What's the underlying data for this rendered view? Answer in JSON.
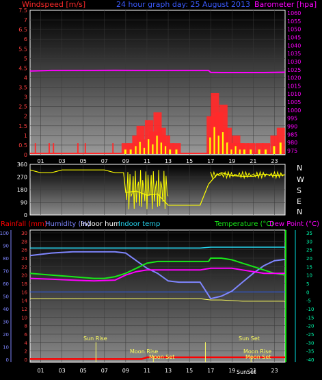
{
  "colors": {
    "wind": "#ff2a2a",
    "gust_light": "#ffff00",
    "gust_mid": "#3b6cff",
    "barometer": "#ff00ff",
    "direction": "#ffff00",
    "rain": "#ff0000",
    "humidity": "#7f86ff",
    "indoor_hum": "#ffffff",
    "indoor_temp": "#25d6f0",
    "temperature": "#18e818",
    "dew_point": "#ff00ff",
    "left_axis_top": "#ff4040",
    "right_axis_top": "#ff00ff",
    "left_axis_bottom_humidity": "#7f86ff",
    "left_axis_bottom_rain": "#ff4040",
    "right_axis_bottom": "#33ff66",
    "temp_axis_right": "#00ffb0"
  },
  "header": {
    "left_title": "Windspeed [m/s]",
    "center_title": "24 hour graph day: 25 August 2013",
    "right_title": "Barometer [hpa]"
  },
  "bottom_header": {
    "rainfall": "Rainfall (mm)",
    "humidity": "Humidity (%)",
    "indoor_hum": "Indoor hum",
    "indoor_temp": "Indoor temp",
    "temperature": "Temperature (°C)",
    "dew_point": "Dew Point (°C)"
  },
  "compass": {
    "labels": [
      "N",
      "W",
      "S",
      "E",
      "N"
    ]
  },
  "x_ticks": [
    "01",
    "03",
    "05",
    "07",
    "09",
    "11",
    "13",
    "15",
    "17",
    "19",
    "21",
    "23"
  ],
  "annotations": {
    "sun_rise": "Sun Rise",
    "sun_set": "Sun Set",
    "moon_rise": "Moon Rise",
    "moon_set": "Moon Set",
    "sun_set_lower": "SunSet"
  },
  "chart_data": [
    {
      "type": "bar",
      "name": "wind",
      "title": "Windspeed [m/s]",
      "y_left": {
        "label": "Windspeed [m/s]",
        "ticks": [
          "0",
          "0.5",
          "1",
          "1.5",
          "2",
          "2.5",
          "3",
          "3.5",
          "4",
          "4.5",
          "5",
          "5.5",
          "6",
          "6.5",
          "7",
          "7.5"
        ],
        "range": [
          0,
          7.5
        ]
      },
      "y_right": {
        "label": "Barometer [hpa]",
        "ticks": [
          "975",
          "980",
          "985",
          "990",
          "995",
          "1000",
          "1005",
          "1010",
          "1015",
          "1020",
          "1025",
          "1030",
          "1035",
          "1040",
          "1045",
          "1050",
          "1055",
          "1060"
        ],
        "range": [
          975,
          1060
        ]
      },
      "x_range_hours": [
        0,
        24
      ],
      "barometer": {
        "x": [
          0,
          2,
          4,
          6,
          8,
          10,
          12,
          14,
          16,
          16.8,
          17,
          18,
          20,
          22,
          23,
          24
        ],
        "y": [
          1024.2,
          1024.5,
          1024.5,
          1024.5,
          1024.6,
          1024.5,
          1024.5,
          1024.5,
          1024.5,
          1024.5,
          1023.3,
          1023.2,
          1023.2,
          1023.2,
          1023.3,
          1023.4
        ]
      },
      "wind_bursts": [
        {
          "x": 0.5,
          "y": 0.6
        },
        {
          "x": 1.8,
          "y": 0.6
        },
        {
          "x": 2.2,
          "y": 0.6
        },
        {
          "x": 4.5,
          "y": 0.6
        },
        {
          "x": 5.2,
          "y": 0.6
        },
        {
          "x": 7.8,
          "y": 0.6
        },
        {
          "x": 9.0,
          "y": 0.6
        },
        {
          "x": 9.5,
          "y": 0.6
        },
        {
          "x": 10.0,
          "y": 1.0
        },
        {
          "x": 10.4,
          "y": 1.5
        },
        {
          "x": 10.8,
          "y": 0.8
        },
        {
          "x": 11.2,
          "y": 1.8
        },
        {
          "x": 11.6,
          "y": 1.2
        },
        {
          "x": 12.0,
          "y": 2.2
        },
        {
          "x": 12.4,
          "y": 1.4
        },
        {
          "x": 12.8,
          "y": 1.0
        },
        {
          "x": 13.2,
          "y": 0.6
        },
        {
          "x": 13.8,
          "y": 0.6
        },
        {
          "x": 17.0,
          "y": 2.0
        },
        {
          "x": 17.4,
          "y": 3.2
        },
        {
          "x": 17.8,
          "y": 2.2
        },
        {
          "x": 18.2,
          "y": 2.6
        },
        {
          "x": 18.6,
          "y": 1.4
        },
        {
          "x": 19.0,
          "y": 0.6
        },
        {
          "x": 19.4,
          "y": 1.0
        },
        {
          "x": 19.8,
          "y": 0.6
        },
        {
          "x": 20.2,
          "y": 0.6
        },
        {
          "x": 20.8,
          "y": 0.6
        },
        {
          "x": 21.6,
          "y": 0.6
        },
        {
          "x": 22.2,
          "y": 0.6
        },
        {
          "x": 23.0,
          "y": 1.0
        },
        {
          "x": 23.6,
          "y": 1.4
        }
      ]
    },
    {
      "type": "line",
      "name": "wind_direction",
      "y_ticks": [
        "0",
        "90",
        "180",
        "270",
        "360"
      ],
      "y_range": [
        0,
        360
      ],
      "x_range_hours": [
        0,
        24
      ],
      "x": [
        0,
        1,
        2,
        3,
        4,
        5,
        6,
        7,
        8,
        8.8,
        9,
        10,
        11,
        12,
        13,
        14,
        15,
        16,
        16.8,
        17.5,
        18,
        19,
        20,
        21,
        22,
        23,
        24
      ],
      "y": [
        320,
        300,
        300,
        320,
        320,
        320,
        320,
        320,
        300,
        300,
        160,
        170,
        140,
        150,
        70,
        70,
        70,
        70,
        220,
        280,
        300,
        280,
        275,
        275,
        290,
        280,
        285
      ]
    },
    {
      "type": "line",
      "name": "temperature_humidity",
      "x_range_hours": [
        0,
        24
      ],
      "y_left_humidity": {
        "label": "Humidity (%)",
        "ticks": [
          "0",
          "10",
          "20",
          "30",
          "40",
          "50",
          "60",
          "70",
          "80",
          "90",
          "100"
        ],
        "range": [
          0,
          100
        ]
      },
      "y_left_rain": {
        "label": "Rainfall (mm)",
        "ticks": [
          "0",
          "2",
          "4",
          "6",
          "8",
          "10",
          "12",
          "14",
          "16",
          "18",
          "20",
          "22",
          "24",
          "26",
          "28",
          "30"
        ],
        "range": [
          0,
          30
        ]
      },
      "y_right_temp": {
        "label": "Temperature (°C)",
        "ticks": [
          "-40",
          "-35",
          "-30",
          "-25",
          "-20",
          "-15",
          "-10",
          "-5",
          "0",
          "5",
          "10",
          "15",
          "20",
          "25",
          "30",
          "35"
        ],
        "range": [
          -40,
          35
        ]
      },
      "series": [
        {
          "name": "Humidity (%)",
          "x": [
            0,
            2,
            4,
            6,
            8,
            9,
            10,
            11,
            12,
            13,
            14,
            15,
            16,
            17,
            18,
            19,
            20,
            21,
            22,
            23,
            24
          ],
          "y": [
            82,
            84,
            85,
            85,
            85,
            84,
            78,
            72,
            68,
            62,
            61,
            61,
            61,
            48,
            50,
            54,
            61,
            68,
            74,
            78,
            79
          ]
        },
        {
          "name": "Indoor hum",
          "x": [
            0,
            2,
            4,
            6,
            8,
            10,
            12,
            14,
            16,
            17,
            18,
            20,
            22,
            24
          ],
          "y": [
            48,
            48,
            48,
            48,
            48,
            48,
            48,
            48,
            48,
            47,
            47,
            46,
            46,
            46
          ]
        },
        {
          "name": "Indoor temp",
          "x": [
            0,
            2,
            4,
            6,
            8,
            10,
            12,
            14,
            16,
            17,
            18,
            20,
            22,
            24
          ],
          "y": [
            26,
            26,
            26,
            26,
            26,
            26,
            26,
            26,
            26,
            26.5,
            26.5,
            26.5,
            26.5,
            26.5
          ]
        },
        {
          "name": "Temperature (°C)",
          "x": [
            0,
            2,
            4,
            6,
            7,
            8,
            9,
            10,
            11,
            12,
            13,
            14,
            15,
            16,
            16.8,
            17,
            18,
            19,
            20,
            21,
            22,
            23,
            24
          ],
          "y": [
            11,
            10,
            9,
            8,
            8,
            9,
            11,
            14,
            17,
            18,
            18,
            18,
            18,
            18,
            18,
            20,
            20,
            19,
            17,
            15,
            13,
            11,
            10
          ]
        },
        {
          "name": "Dew Point (°C)",
          "x": [
            0,
            2,
            4,
            6,
            8,
            9,
            10,
            11,
            12,
            13,
            14,
            15,
            16,
            17,
            18,
            19,
            20,
            21,
            22,
            23,
            24
          ],
          "y": [
            8,
            7.5,
            7,
            6.5,
            7,
            10,
            12,
            13,
            13,
            13,
            13,
            13,
            13,
            14,
            14,
            14,
            13,
            12,
            11,
            11,
            11
          ]
        },
        {
          "name": "Rainfall (mm)",
          "x": [
            0,
            10.5,
            11,
            24
          ],
          "y": [
            0.1,
            0.1,
            0.5,
            0.5
          ]
        }
      ]
    }
  ]
}
